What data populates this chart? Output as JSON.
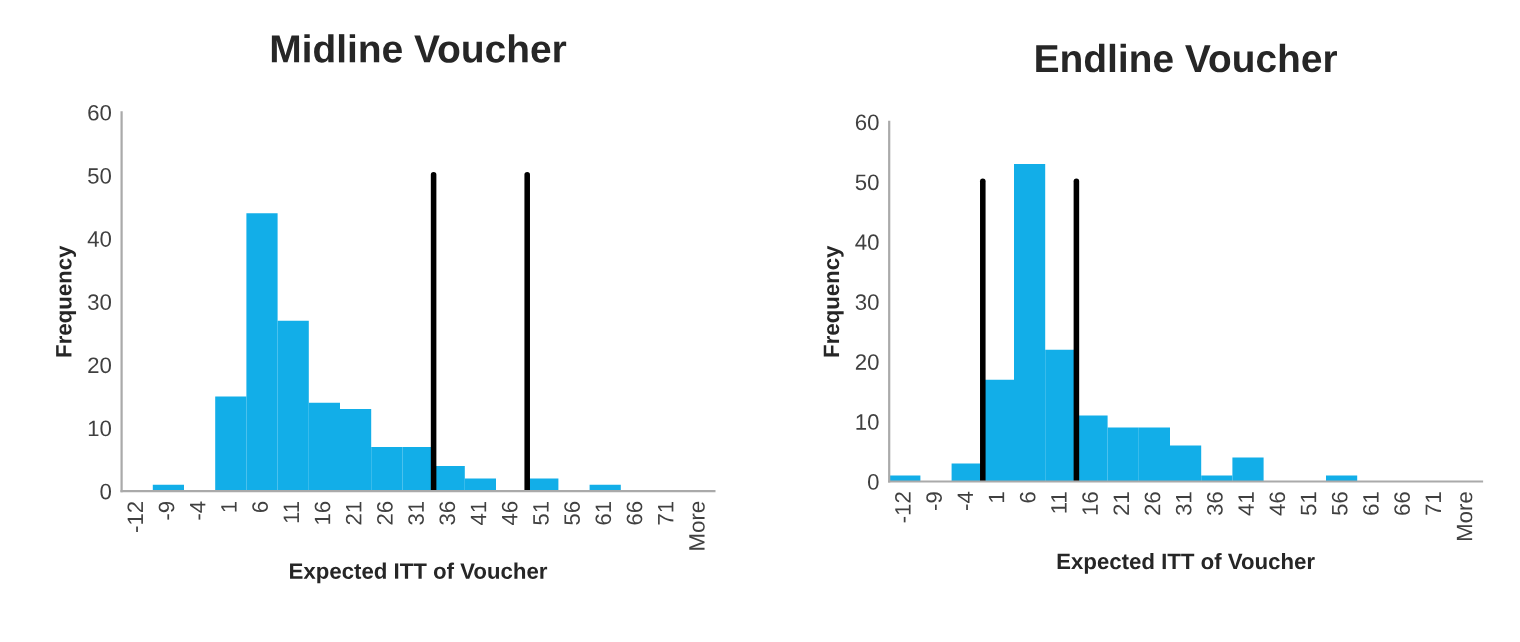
{
  "chart_data": [
    {
      "type": "bar",
      "title": "Midline Voucher",
      "xlabel": "Expected ITT of Voucher",
      "ylabel": "Frequency",
      "categories": [
        "-12",
        "-9",
        "-4",
        "1",
        "6",
        "11",
        "16",
        "21",
        "26",
        "31",
        "36",
        "41",
        "46",
        "51",
        "56",
        "61",
        "66",
        "71",
        "More"
      ],
      "series": [
        {
          "color": "#12aee8",
          "values": [
            0,
            1,
            0,
            15,
            44,
            27,
            14,
            13,
            7,
            7,
            4,
            2,
            0,
            2,
            0,
            1,
            0,
            0,
            0
          ]
        }
      ],
      "ylim": [
        0,
        60
      ],
      "yticks": [
        0,
        10,
        20,
        30,
        40,
        50,
        60
      ],
      "grid": false,
      "legend": false
    },
    {
      "type": "bar",
      "title": "Endline Voucher",
      "xlabel": "Expected ITT of Voucher",
      "ylabel": "Frequency",
      "categories": [
        "-12",
        "-9",
        "-4",
        "1",
        "6",
        "11",
        "16",
        "21",
        "26",
        "31",
        "36",
        "41",
        "46",
        "51",
        "56",
        "61",
        "66",
        "71",
        "More"
      ],
      "series": [
        {
          "color": "#12aee8",
          "values": [
            1,
            0,
            3,
            17,
            53,
            22,
            11,
            9,
            9,
            6,
            1,
            4,
            0,
            0,
            1,
            0,
            0,
            0,
            0
          ]
        }
      ],
      "ylim": [
        0,
        60
      ],
      "yticks": [
        0,
        10,
        20,
        30,
        40,
        50,
        60
      ],
      "grid": false,
      "legend": false
    }
  ]
}
